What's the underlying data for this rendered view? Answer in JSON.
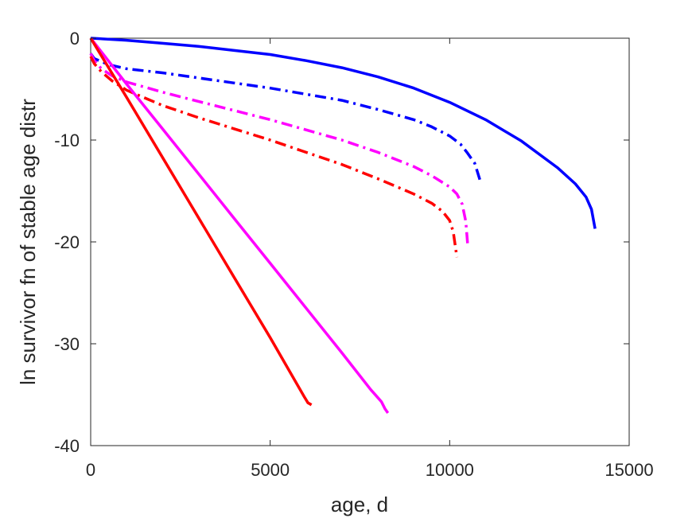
{
  "chart_data": {
    "type": "line",
    "title": "",
    "xlabel": "age, d",
    "ylabel": "ln survivor fn of stable age distr",
    "xlim": [
      0,
      15000
    ],
    "ylim": [
      -40,
      0
    ],
    "xticks": [
      0,
      5000,
      10000,
      15000
    ],
    "yticks": [
      -40,
      -30,
      -20,
      -10,
      0
    ],
    "grid": false,
    "legend": "none",
    "series": [
      {
        "color": "#0000ff",
        "style": "solid",
        "x": [
          0,
          1000,
          2000,
          3000,
          4000,
          5000,
          6000,
          7000,
          8000,
          9000,
          10000,
          11000,
          12000,
          13000,
          13500,
          13800,
          13950,
          14050
        ],
        "y": [
          0,
          -0.2,
          -0.5,
          -0.8,
          -1.2,
          -1.6,
          -2.2,
          -2.9,
          -3.8,
          -4.9,
          -6.3,
          -8.0,
          -10.1,
          -12.7,
          -14.3,
          -15.6,
          -16.8,
          -18.7
        ]
      },
      {
        "color": "#0000ff",
        "style": "dashdot",
        "x": [
          0,
          100,
          500,
          1000,
          2000,
          3000,
          4000,
          5000,
          6000,
          7000,
          8000,
          9000,
          9500,
          10000,
          10300,
          10500,
          10700,
          10850
        ],
        "y": [
          -1.5,
          -2.0,
          -2.6,
          -3.0,
          -3.4,
          -3.9,
          -4.4,
          -4.9,
          -5.5,
          -6.1,
          -7.0,
          -8.0,
          -8.7,
          -9.6,
          -10.4,
          -11.3,
          -12.3,
          -14.0
        ]
      },
      {
        "color": "#ff00ff",
        "style": "dashdot",
        "x": [
          0,
          100,
          300,
          600,
          1000,
          2000,
          3000,
          4000,
          5000,
          6000,
          7000,
          8000,
          9000,
          9500,
          10000,
          10200,
          10350,
          10450,
          10500
        ],
        "y": [
          -1.5,
          -2.2,
          -3.0,
          -3.7,
          -4.3,
          -5.3,
          -6.2,
          -7.1,
          -8.0,
          -9.0,
          -10.0,
          -11.2,
          -12.6,
          -13.5,
          -14.6,
          -15.3,
          -16.3,
          -18.0,
          -20.2
        ]
      },
      {
        "color": "#ff0000",
        "style": "dashdot",
        "x": [
          0,
          100,
          300,
          600,
          1000,
          2000,
          3000,
          4000,
          5000,
          6000,
          7000,
          8000,
          9000,
          9500,
          9800,
          10000,
          10100,
          10200
        ],
        "y": [
          -1.8,
          -2.5,
          -3.3,
          -4.2,
          -5.1,
          -6.6,
          -7.8,
          -8.9,
          -10.0,
          -11.2,
          -12.4,
          -13.8,
          -15.3,
          -16.2,
          -17.0,
          -17.9,
          -19.0,
          -21.5
        ]
      },
      {
        "color": "#ff00ff",
        "style": "solid",
        "x": [
          0,
          1000,
          2000,
          3000,
          4000,
          5000,
          6000,
          7000,
          7800,
          8000,
          8100,
          8200,
          8280
        ],
        "y": [
          0,
          -4.5,
          -8.9,
          -13.3,
          -17.7,
          -22.1,
          -26.5,
          -30.9,
          -34.5,
          -35.3,
          -35.7,
          -36.4,
          -36.8
        ]
      },
      {
        "color": "#ff0000",
        "style": "solid",
        "x": [
          0,
          1000,
          2000,
          3000,
          4000,
          5000,
          5800,
          5950,
          6050,
          6150
        ],
        "y": [
          0,
          -5.8,
          -11.7,
          -17.6,
          -23.5,
          -29.4,
          -34.3,
          -35.2,
          -35.8,
          -36.0
        ]
      }
    ]
  }
}
